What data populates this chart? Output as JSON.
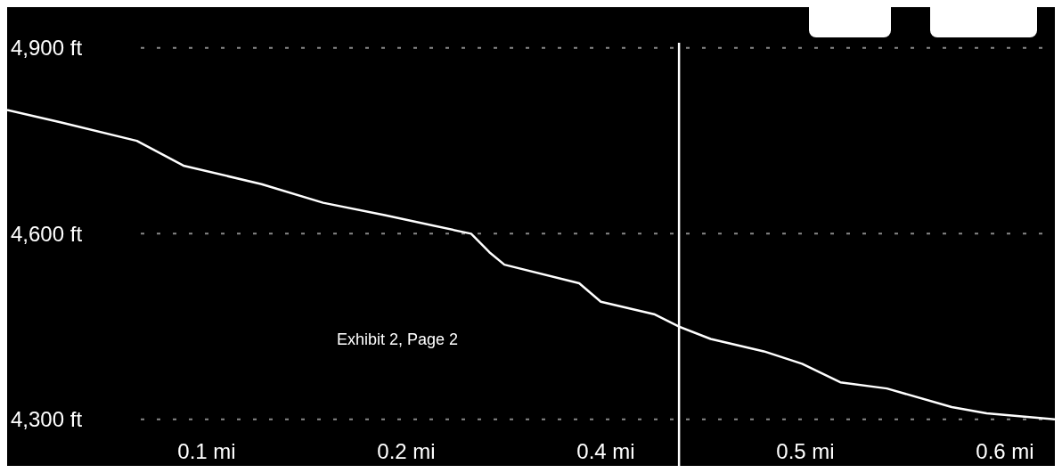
{
  "chart_data": {
    "type": "line",
    "x": [
      0,
      0.032,
      0.078,
      0.106,
      0.153,
      0.19,
      0.227,
      0.279,
      0.29,
      0.299,
      0.344,
      0.357,
      0.389,
      0.404,
      0.423,
      0.455,
      0.478,
      0.501,
      0.529,
      0.568,
      0.589,
      0.63
    ],
    "series": [
      {
        "color": "#ffffff",
        "values": [
          4800,
          4780,
          4750,
          4710,
          4680,
          4650,
          4630,
          4600,
          4570,
          4550,
          4520,
          4490,
          4470,
          4450,
          4430,
          4410,
          4390,
          4360,
          4350,
          4320,
          4310,
          4300
        ]
      }
    ],
    "xlim": [
      0,
      0.63
    ],
    "xticks": [
      {
        "value": 0.12,
        "label": "0.1 mi"
      },
      {
        "value": 0.24,
        "label": "0.2 mi"
      },
      {
        "value": 0.36,
        "label": "0.4 mi"
      },
      {
        "value": 0.48,
        "label": "0.5 mi"
      },
      {
        "value": 0.6,
        "label": "0.6 mi"
      }
    ],
    "ylim": [
      4225,
      4966
    ],
    "yticks": [
      {
        "value": 4300,
        "label": "4,300 ft"
      },
      {
        "value": 4600,
        "label": "4,600 ft"
      },
      {
        "value": 4900,
        "label": "4,900 ft"
      }
    ],
    "grid": "y",
    "ref_lines": [
      {
        "axis": "x",
        "value": 0.404,
        "color": "#ffffff"
      }
    ],
    "annotations": [
      "Exhibit 2, Page 2"
    ],
    "marker": "none",
    "line_style": "solid"
  }
}
